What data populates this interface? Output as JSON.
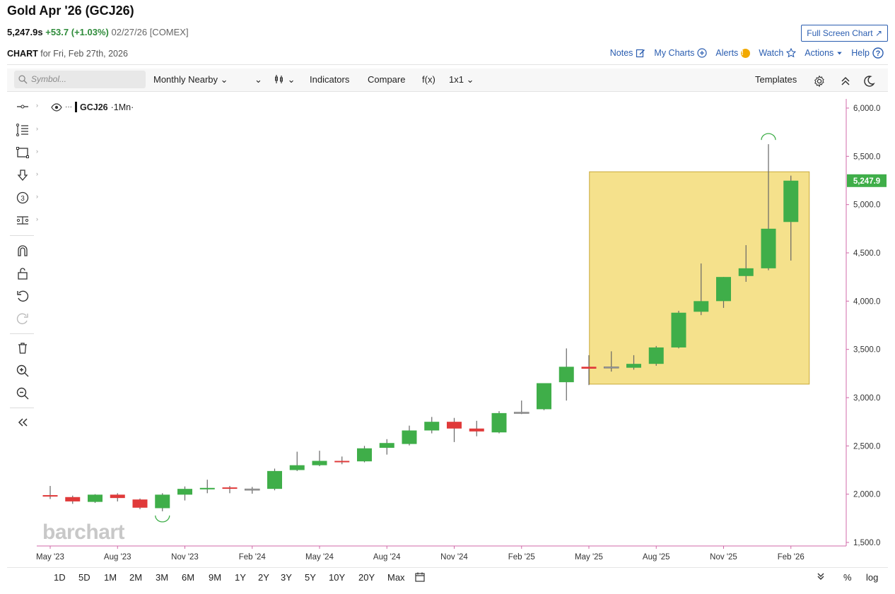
{
  "header": {
    "title": "Gold Apr '26 (GCJ26)",
    "price": "5,247.9s",
    "change": "+53.7 (+1.03%)",
    "meta": "02/27/26 [COMEX]",
    "full_screen_label": "Full Screen Chart ↗",
    "chart_label": "CHART",
    "chart_for": " for Fri, Feb 27th, 2026"
  },
  "toplinks": {
    "notes": "Notes",
    "my_charts": "My Charts",
    "alerts": "Alerts",
    "alerts_badge": "!",
    "watch": "Watch",
    "actions": "Actions",
    "help": "Help"
  },
  "toolbar": {
    "search_placeholder": "Symbol...",
    "interval": "Monthly Nearby ⌄",
    "chevron": "⌄",
    "chart_type": "⌄",
    "indicators": "Indicators",
    "compare": "Compare",
    "fx": "f(x)",
    "layout": "1x1 ⌄",
    "templates": "Templates"
  },
  "legend": {
    "dots": "···",
    "symbol": "GCJ26",
    "period": "·1Mn·"
  },
  "watermark": "barchart",
  "periods": [
    "1D",
    "5D",
    "1M",
    "2M",
    "3M",
    "6M",
    "9M",
    "1Y",
    "2Y",
    "3Y",
    "5Y",
    "10Y",
    "20Y",
    "Max"
  ],
  "bottom_right": {
    "percent": "%",
    "log": "log"
  },
  "colors": {
    "up": "#3fae49",
    "down": "#e03a3a",
    "neutral": "#888888",
    "highlight": "#f2d765",
    "price_tag": "#3fae49",
    "axis": "#d06aa8"
  },
  "icons": [
    "search-icon",
    "notes-icon",
    "plus-circle-icon",
    "alert-icon",
    "star-icon",
    "caret-down-icon",
    "help-icon",
    "gear-icon",
    "collapse-icon",
    "moon-icon",
    "eye-icon",
    "calendar-icon",
    "double-chevron-down-icon"
  ],
  "chart_data": {
    "type": "candlestick",
    "symbol": "GCJ26",
    "interval": "1Mn",
    "ylim": [
      1500,
      6000
    ],
    "y_ticks": [
      "1,500.0",
      "2,000.0",
      "2,500.0",
      "3,000.0",
      "3,500.0",
      "4,000.0",
      "4,500.0",
      "5,000.0",
      "5,500.0",
      "6,000.0"
    ],
    "x_ticks": [
      "May '23",
      "Aug '23",
      "Nov '23",
      "Feb '24",
      "May '24",
      "Aug '24",
      "Nov '24",
      "Feb '25",
      "May '25",
      "Aug '25",
      "Nov '25",
      "Feb '26"
    ],
    "last_price_label": "5,247.9",
    "last_price": 5247.9,
    "highlight_range": {
      "from": "Jun '25",
      "to": "Feb '26",
      "low": 3140,
      "high": 5340
    },
    "marked_low": {
      "month": "Oct '23",
      "value": 1823
    },
    "marked_high": {
      "month": "Jan '26",
      "value": 5626
    },
    "candles": [
      {
        "month": "May '23",
        "open": 1990,
        "high": 2085,
        "low": 1950,
        "close": 1985
      },
      {
        "month": "Jun '23",
        "open": 1970,
        "high": 1985,
        "low": 1900,
        "close": 1925
      },
      {
        "month": "Jul '23",
        "open": 1920,
        "high": 2000,
        "low": 1910,
        "close": 1995
      },
      {
        "month": "Aug '23",
        "open": 1995,
        "high": 2010,
        "low": 1925,
        "close": 1960
      },
      {
        "month": "Sep '23",
        "open": 1945,
        "high": 1955,
        "low": 1845,
        "close": 1860
      },
      {
        "month": "Oct '23",
        "open": 1855,
        "high": 2010,
        "low": 1823,
        "close": 1995
      },
      {
        "month": "Nov '23",
        "open": 1995,
        "high": 2080,
        "low": 1935,
        "close": 2055
      },
      {
        "month": "Dec '23",
        "open": 2050,
        "high": 2150,
        "low": 2010,
        "close": 2065
      },
      {
        "month": "Jan '24",
        "open": 2070,
        "high": 2085,
        "low": 2010,
        "close": 2060
      },
      {
        "month": "Feb '24",
        "open": 2055,
        "high": 2075,
        "low": 2005,
        "close": 2055
      },
      {
        "month": "Mar '24",
        "open": 2055,
        "high": 2265,
        "low": 2040,
        "close": 2240
      },
      {
        "month": "Apr '24",
        "open": 2250,
        "high": 2440,
        "low": 2240,
        "close": 2300
      },
      {
        "month": "May '24",
        "open": 2300,
        "high": 2450,
        "low": 2290,
        "close": 2345
      },
      {
        "month": "Jun '24",
        "open": 2345,
        "high": 2390,
        "low": 2310,
        "close": 2340
      },
      {
        "month": "Jul '24",
        "open": 2340,
        "high": 2500,
        "low": 2330,
        "close": 2475
      },
      {
        "month": "Aug '24",
        "open": 2480,
        "high": 2570,
        "low": 2410,
        "close": 2530
      },
      {
        "month": "Sep '24",
        "open": 2520,
        "high": 2710,
        "low": 2505,
        "close": 2660
      },
      {
        "month": "Oct '24",
        "open": 2660,
        "high": 2800,
        "low": 2630,
        "close": 2750
      },
      {
        "month": "Nov '24",
        "open": 2750,
        "high": 2790,
        "low": 2540,
        "close": 2680
      },
      {
        "month": "Dec '24",
        "open": 2680,
        "high": 2760,
        "low": 2600,
        "close": 2650
      },
      {
        "month": "Jan '25",
        "open": 2640,
        "high": 2860,
        "low": 2630,
        "close": 2840
      },
      {
        "month": "Feb '25",
        "open": 2850,
        "high": 2970,
        "low": 2830,
        "close": 2850
      },
      {
        "month": "Mar '25",
        "open": 2880,
        "high": 3150,
        "low": 2870,
        "close": 3150
      },
      {
        "month": "Apr '25",
        "open": 3160,
        "high": 3510,
        "low": 2970,
        "close": 3320
      },
      {
        "month": "May '25",
        "open": 3320,
        "high": 3440,
        "low": 3130,
        "close": 3300
      },
      {
        "month": "Jun '25",
        "open": 3310,
        "high": 3480,
        "low": 3270,
        "close": 3320
      },
      {
        "month": "Jul '25",
        "open": 3310,
        "high": 3440,
        "low": 3290,
        "close": 3350
      },
      {
        "month": "Aug '25",
        "open": 3350,
        "high": 3535,
        "low": 3330,
        "close": 3520
      },
      {
        "month": "Sep '25",
        "open": 3520,
        "high": 3900,
        "low": 3510,
        "close": 3880
      },
      {
        "month": "Oct '25",
        "open": 3890,
        "high": 4390,
        "low": 3855,
        "close": 4000
      },
      {
        "month": "Nov '25",
        "open": 4000,
        "high": 4250,
        "low": 3930,
        "close": 4250
      },
      {
        "month": "Dec '25",
        "open": 4260,
        "high": 4580,
        "low": 4200,
        "close": 4340
      },
      {
        "month": "Jan '26",
        "open": 4340,
        "high": 5626,
        "low": 4320,
        "close": 4750
      },
      {
        "month": "Feb '26",
        "open": 4820,
        "high": 5300,
        "low": 4420,
        "close": 5247.9
      }
    ]
  }
}
